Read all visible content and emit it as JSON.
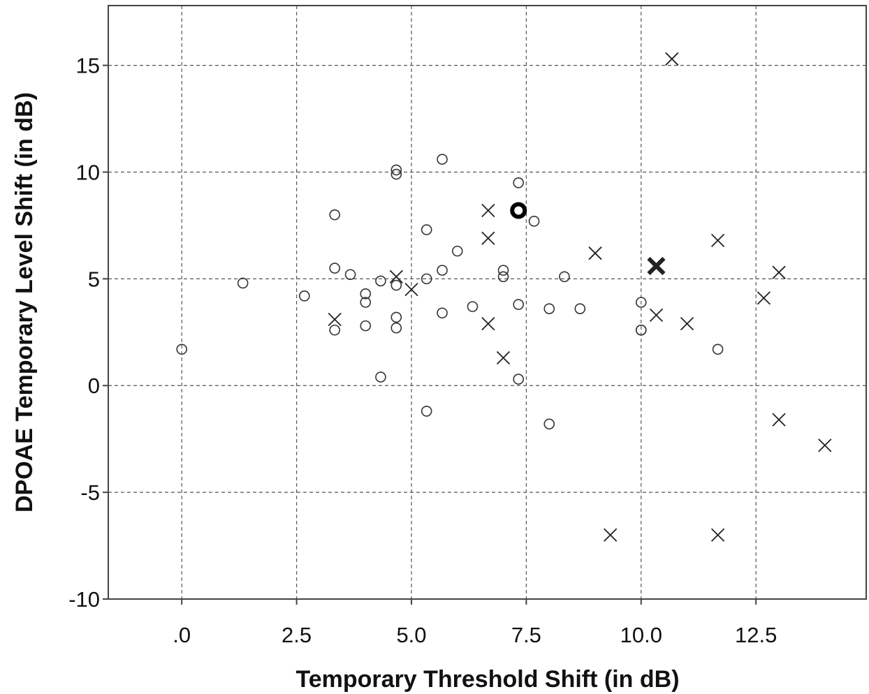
{
  "chart_data": {
    "type": "scatter",
    "title": "",
    "xlabel": "Temporary Threshold Shift (in dB)",
    "ylabel": "DPOAE Temporary Level Shift (in dB)",
    "xlim": [
      -1.6,
      14.9
    ],
    "ylim": [
      -10,
      17.8
    ],
    "x_ticks": [
      0,
      2.5,
      5,
      7.5,
      10,
      12.5
    ],
    "x_tick_labels": [
      ".0",
      "2.5",
      "5.0",
      "7.5",
      "10.0",
      "12.5"
    ],
    "y_ticks": [
      -10,
      -5,
      0,
      5,
      10,
      15
    ],
    "y_tick_labels": [
      "-10",
      "-5",
      "0",
      "5",
      "10",
      "15"
    ],
    "grid": true,
    "series": [
      {
        "marker": "circle",
        "points": [
          [
            0.0,
            1.7
          ],
          [
            1.33,
            4.8
          ],
          [
            2.67,
            4.2
          ],
          [
            3.33,
            8.0
          ],
          [
            3.33,
            5.5
          ],
          [
            3.33,
            2.6
          ],
          [
            3.67,
            5.2
          ],
          [
            4.0,
            4.3
          ],
          [
            4.0,
            3.9
          ],
          [
            4.0,
            2.8
          ],
          [
            4.33,
            4.9
          ],
          [
            4.33,
            0.4
          ],
          [
            4.67,
            10.1
          ],
          [
            4.67,
            9.9
          ],
          [
            4.67,
            4.7
          ],
          [
            4.67,
            3.2
          ],
          [
            4.67,
            2.7
          ],
          [
            5.33,
            7.3
          ],
          [
            5.33,
            5.0
          ],
          [
            5.33,
            -1.2
          ],
          [
            5.67,
            10.6
          ],
          [
            5.67,
            5.4
          ],
          [
            5.67,
            3.4
          ],
          [
            6.0,
            6.3
          ],
          [
            6.33,
            3.7
          ],
          [
            7.0,
            5.4
          ],
          [
            7.0,
            5.1
          ],
          [
            7.33,
            9.5
          ],
          [
            7.33,
            3.8
          ],
          [
            7.33,
            0.3
          ],
          [
            7.67,
            7.7
          ],
          [
            8.0,
            3.6
          ],
          [
            8.0,
            -1.8
          ],
          [
            8.33,
            5.1
          ],
          [
            8.67,
            3.6
          ],
          [
            10.0,
            3.9
          ],
          [
            10.0,
            2.6
          ],
          [
            10.0,
            2.6
          ],
          [
            11.67,
            1.7
          ]
        ]
      },
      {
        "marker": "cross",
        "points": [
          [
            3.33,
            3.1
          ],
          [
            4.67,
            5.1
          ],
          [
            5.0,
            4.5
          ],
          [
            6.67,
            8.2
          ],
          [
            6.67,
            6.9
          ],
          [
            6.67,
            2.9
          ],
          [
            7.0,
            1.3
          ],
          [
            9.0,
            6.2
          ],
          [
            9.33,
            -7.0
          ],
          [
            10.33,
            3.3
          ],
          [
            10.67,
            15.3
          ],
          [
            11.0,
            2.9
          ],
          [
            11.67,
            6.8
          ],
          [
            11.67,
            -7.0
          ],
          [
            12.67,
            4.1
          ],
          [
            13.0,
            5.3
          ],
          [
            13.0,
            -1.6
          ],
          [
            14.0,
            -2.8
          ]
        ]
      },
      {
        "marker": "filled-circle",
        "points": [
          [
            7.33,
            8.2
          ]
        ]
      },
      {
        "marker": "bold-cross",
        "points": [
          [
            10.33,
            5.6
          ]
        ]
      }
    ]
  }
}
